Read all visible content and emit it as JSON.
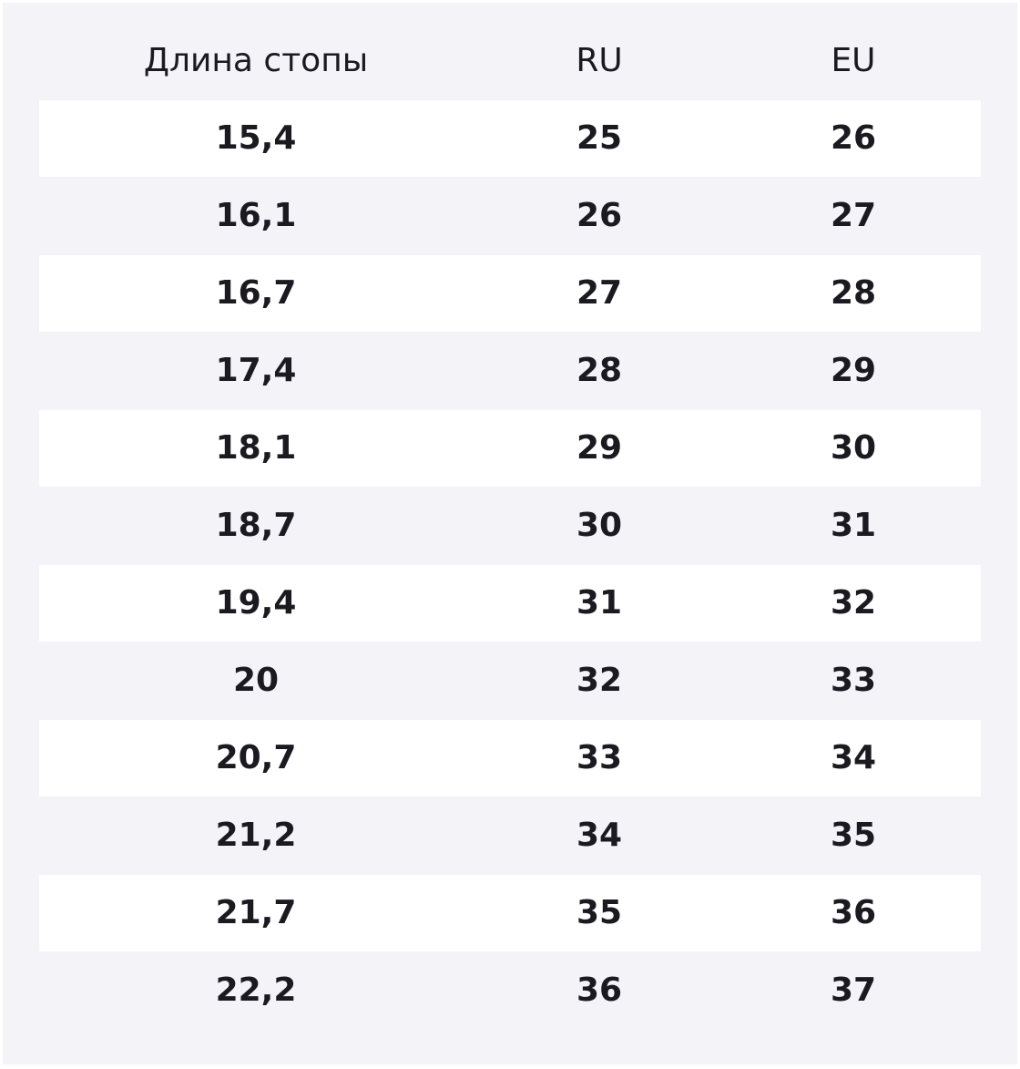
{
  "table": {
    "header": [
      "Длина стопы",
      "RU",
      "EU"
    ],
    "rows": [
      [
        "15,4",
        "25",
        "26"
      ],
      [
        "16,1",
        "26",
        "27"
      ],
      [
        "16,7",
        "27",
        "28"
      ],
      [
        "17,4",
        "28",
        "29"
      ],
      [
        "18,1",
        "29",
        "30"
      ],
      [
        "18,7",
        "30",
        "31"
      ],
      [
        "19,4",
        "31",
        "32"
      ],
      [
        "20",
        "32",
        "33"
      ],
      [
        "20,7",
        "33",
        "34"
      ],
      [
        "21,2",
        "34",
        "35"
      ],
      [
        "21,7",
        "35",
        "36"
      ],
      [
        "22,2",
        "36",
        "37"
      ]
    ]
  }
}
